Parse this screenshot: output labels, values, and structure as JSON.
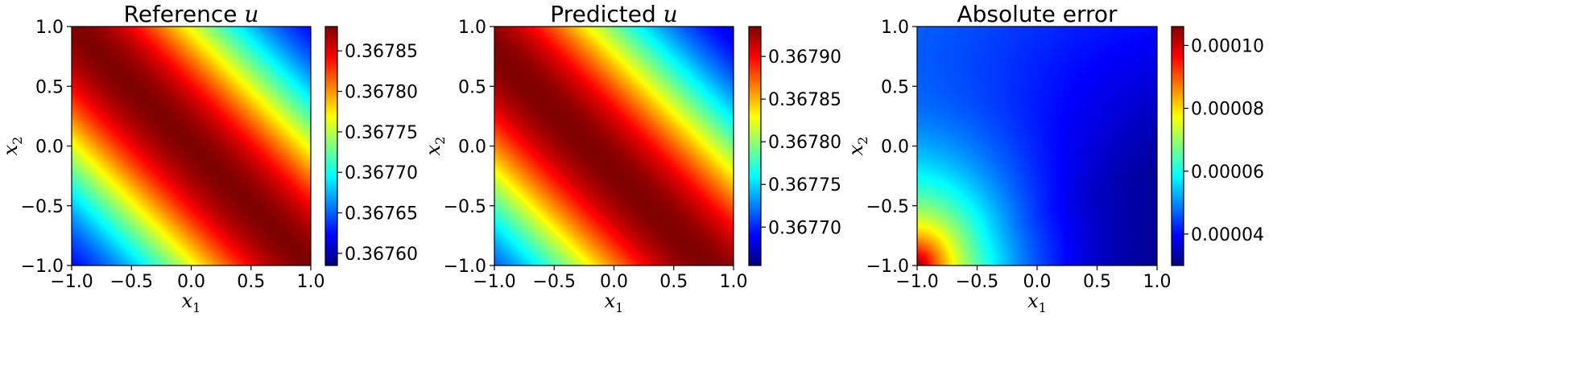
{
  "chart_data": [
    {
      "type": "heatmap",
      "title_text": "Reference ",
      "title_var": "u",
      "xlabel": "x",
      "xlabel_sub": "1",
      "ylabel": "x",
      "ylabel_sub": "2",
      "xlim": [
        -1.0,
        1.0
      ],
      "ylim": [
        -1.0,
        1.0
      ],
      "xticks": [
        "−1.0",
        "−0.5",
        "0.0",
        "0.5",
        "1.0"
      ],
      "yticks": [
        "−1.0",
        "−0.5",
        "0.0",
        "0.5",
        "1.0"
      ],
      "colormap": "jet",
      "colorbar": {
        "range": [
          0.367585,
          0.36788
        ],
        "ticks": [
          0.3676,
          0.36765,
          0.3677,
          0.36775,
          0.3678,
          0.36785
        ],
        "ticklabels": [
          "0.36760",
          "0.36765",
          "0.36770",
          "0.36775",
          "0.36780",
          "0.36785"
        ]
      },
      "field": "band",
      "field_params": {
        "center": 0.0,
        "width": 0.7,
        "min": 0.367585,
        "max": 0.36788
      }
    },
    {
      "type": "heatmap",
      "title_text": "Predicted ",
      "title_var": "u",
      "xlabel": "x",
      "xlabel_sub": "1",
      "ylabel": "x",
      "ylabel_sub": "2",
      "xlim": [
        -1.0,
        1.0
      ],
      "ylim": [
        -1.0,
        1.0
      ],
      "xticks": [
        "−1.0",
        "−0.5",
        "0.0",
        "0.5",
        "1.0"
      ],
      "yticks": [
        "−1.0",
        "−0.5",
        "0.0",
        "0.5",
        "1.0"
      ],
      "colormap": "jet",
      "colorbar": {
        "range": [
          0.367655,
          0.367935
        ],
        "ticks": [
          0.3677,
          0.36775,
          0.3678,
          0.36785,
          0.3679
        ],
        "ticklabels": [
          "0.36770",
          "0.36775",
          "0.36780",
          "0.36785",
          "0.36790"
        ]
      },
      "field": "band",
      "field_params": {
        "center": -0.15,
        "width": 0.72,
        "min": 0.367655,
        "max": 0.367935
      }
    },
    {
      "type": "heatmap",
      "title_text": "Absolute error",
      "title_var": "",
      "xlabel": "x",
      "xlabel_sub": "1",
      "ylabel": "x",
      "ylabel_sub": "2",
      "xlim": [
        -1.0,
        1.0
      ],
      "ylim": [
        -1.0,
        1.0
      ],
      "xticks": [
        "−1.0",
        "−0.5",
        "0.0",
        "0.5",
        "1.0"
      ],
      "yticks": [
        "−1.0",
        "−0.5",
        "0.0",
        "0.5",
        "1.0"
      ],
      "colormap": "jet",
      "colorbar": {
        "range": [
          3e-05,
          0.000106
        ],
        "ticks": [
          4e-05,
          6e-05,
          8e-05,
          0.0001
        ],
        "ticklabels": [
          "0.00004",
          "0.00006",
          "0.00008",
          "0.00010"
        ]
      },
      "field": "error",
      "field_params": {
        "min": 3e-05,
        "max": 0.000106
      }
    }
  ]
}
